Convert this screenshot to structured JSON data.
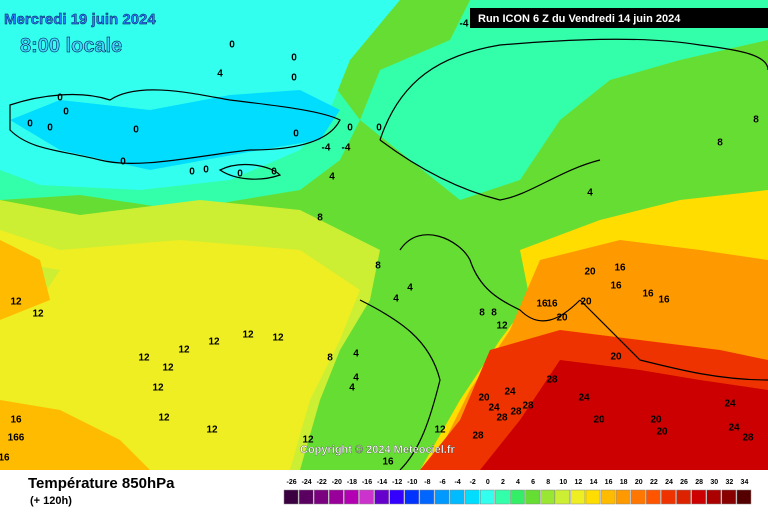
{
  "header": {
    "date": "Mercredi 19 juin 2024",
    "time": "8:00 locale",
    "run": "Run ICON 6 Z du Vendredi 14 juin 2024"
  },
  "copyright": "Copyright © 2024 Meteociel.fr",
  "legend": {
    "title": "Température 850hPa",
    "subtitle": "(+ 120h)",
    "scale": [
      -26,
      -24,
      -22,
      -20,
      -18,
      -16,
      -14,
      -12,
      -10,
      -8,
      -6,
      -4,
      -2,
      0,
      2,
      4,
      6,
      8,
      10,
      12,
      14,
      16,
      18,
      20,
      22,
      24,
      26,
      28,
      30,
      32,
      34
    ],
    "colors": [
      "#3a0040",
      "#5a0060",
      "#7a007f",
      "#990099",
      "#b300b3",
      "#cc33cc",
      "#6600cc",
      "#3300ff",
      "#0033ff",
      "#0066ff",
      "#0099ff",
      "#00bbff",
      "#00ddff",
      "#33ffee",
      "#33ffaa",
      "#33ee66",
      "#66dd33",
      "#99e633",
      "#ccee33",
      "#eeee22",
      "#ffdd00",
      "#ffbb00",
      "#ff9900",
      "#ff7700",
      "#ff5500",
      "#ee3300",
      "#dd2200",
      "#cc0000",
      "#aa0000",
      "#880000",
      "#550000"
    ]
  },
  "map_labels": [
    "0",
    "4",
    "0",
    "0",
    "0",
    "0",
    "0",
    "0",
    "0",
    "0",
    "0",
    "0",
    "0",
    "0",
    "0",
    "0",
    "0",
    "-4",
    "-4",
    "4",
    "8",
    "-4",
    "4",
    "8",
    "8",
    "8",
    "4",
    "4",
    "8",
    "8",
    "12",
    "20",
    "16",
    "16",
    "20",
    "16",
    "16",
    "16",
    "16",
    "20",
    "12",
    "12",
    "12",
    "12",
    "12",
    "12",
    "12",
    "12",
    "12",
    "12",
    "12",
    "16",
    "166",
    "16",
    "20",
    "24",
    "28",
    "24",
    "28",
    "24",
    "28",
    "28",
    "28",
    "20",
    "20",
    "20",
    "20",
    "24",
    "24",
    "28",
    "16",
    "12",
    "12",
    "8",
    "4",
    "4",
    "4"
  ]
}
